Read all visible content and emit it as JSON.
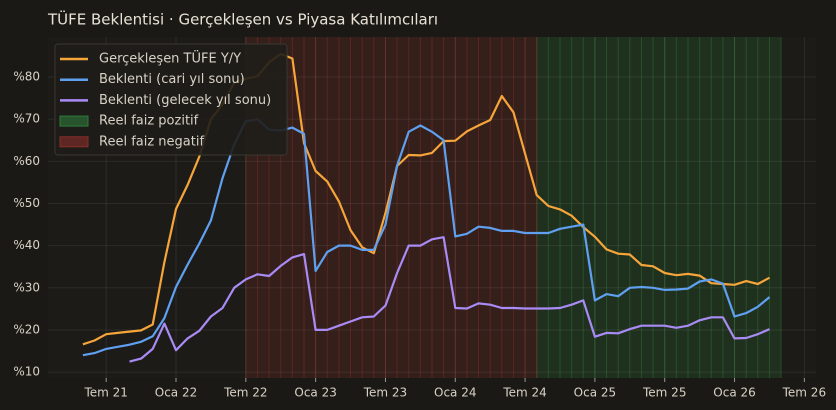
{
  "chart_data": {
    "type": "line",
    "title": "TÜFE Beklentisi · Gerçekleşen vs Piyasa Katılımcıları",
    "x": [
      "2021-05",
      "2021-06",
      "2021-07",
      "2021-08",
      "2021-09",
      "2021-10",
      "2021-11",
      "2021-12",
      "2022-01",
      "2022-02",
      "2022-03",
      "2022-04",
      "2022-05",
      "2022-06",
      "2022-07",
      "2022-08",
      "2022-09",
      "2022-10",
      "2022-11",
      "2022-12",
      "2023-01",
      "2023-02",
      "2023-03",
      "2023-04",
      "2023-05",
      "2023-06",
      "2023-07",
      "2023-08",
      "2023-09",
      "2023-10",
      "2023-11",
      "2023-12",
      "2024-01",
      "2024-02",
      "2024-03",
      "2024-04",
      "2024-05",
      "2024-06",
      "2024-07",
      "2024-08",
      "2024-09",
      "2024-10",
      "2024-11",
      "2024-12",
      "2025-01",
      "2025-02",
      "2025-03",
      "2025-04",
      "2025-05",
      "2025-06",
      "2025-07",
      "2025-08",
      "2025-09",
      "2025-10",
      "2025-11",
      "2025-12",
      "2026-01",
      "2026-02",
      "2026-03",
      "2026-04"
    ],
    "series": [
      {
        "name": "Gerçekleşen TÜFE Y/Y",
        "color": "#f5a53a",
        "values": [
          16.6,
          17.5,
          19.0,
          19.3,
          19.6,
          19.9,
          21.3,
          36.1,
          48.7,
          54.4,
          61.1,
          70.0,
          73.5,
          78.6,
          79.6,
          80.2,
          83.5,
          85.5,
          84.4,
          64.3,
          57.7,
          55.2,
          50.5,
          43.7,
          39.6,
          38.2,
          47.8,
          58.9,
          61.5,
          61.4,
          62.0,
          64.8,
          64.9,
          67.1,
          68.5,
          69.8,
          75.5,
          71.6,
          61.8,
          52.0,
          49.4,
          48.6,
          47.1,
          44.4,
          42.1,
          39.1,
          38.1,
          37.9,
          35.4,
          35.1,
          33.5,
          33.0,
          33.3,
          32.9,
          31.1,
          30.9,
          30.7,
          31.6,
          30.9,
          32.4
        ]
      },
      {
        "name": "Beklenti (cari yıl sonu)",
        "color": "#5fa0f0",
        "values": [
          14.0,
          14.5,
          15.5,
          16.0,
          16.5,
          17.2,
          18.5,
          22.8,
          30.2,
          35.5,
          40.5,
          46.0,
          56.0,
          64.0,
          69.5,
          70.0,
          67.5,
          67.3,
          68.0,
          66.5,
          34.0,
          38.5,
          40.0,
          40.0,
          39.0,
          39.0,
          45.0,
          59.0,
          67.0,
          68.5,
          67.0,
          65.0,
          42.2,
          42.8,
          44.5,
          44.2,
          43.5,
          43.5,
          43.0,
          43.0,
          43.0,
          44.0,
          44.5,
          45.0,
          27.0,
          28.5,
          28.0,
          30.0,
          30.2,
          30.0,
          29.5,
          29.6,
          29.8,
          31.5,
          32.0,
          31.0,
          23.2,
          24.0,
          25.5,
          27.8
        ]
      },
      {
        "name": "Beklenti (gelecek yıl sonu)",
        "color": "#a98bf5",
        "values": [
          null,
          null,
          null,
          null,
          12.5,
          13.2,
          15.5,
          21.5,
          15.2,
          18.0,
          19.8,
          23.2,
          25.2,
          30.0,
          32.0,
          33.2,
          32.8,
          35.2,
          37.2,
          38.0,
          20.0,
          20.0,
          21.0,
          22.0,
          23.0,
          23.2,
          25.8,
          33.5,
          40.0,
          40.0,
          41.5,
          42.0,
          25.2,
          25.1,
          26.3,
          26.0,
          25.2,
          25.2,
          25.1,
          25.1,
          25.1,
          25.2,
          26.0,
          27.0,
          18.4,
          19.3,
          19.2,
          20.2,
          21.0,
          21.0,
          21.0,
          20.5,
          21.0,
          22.3,
          23.0,
          23.0,
          18.0,
          18.1,
          19.0,
          20.2
        ]
      }
    ],
    "regions": [
      {
        "name": "Reel faiz pozitif",
        "start": "2024-08",
        "end": "2026-05",
        "color": "#2e7a3a"
      },
      {
        "name": "Reel faiz negatif",
        "start": "2022-07",
        "end": "2024-08",
        "color": "#8a2e2a"
      }
    ],
    "xlim": [
      "2021-02",
      "2026-08"
    ],
    "xticks": [
      {
        "value": "2021-07",
        "label": "Tem 21"
      },
      {
        "value": "2022-01",
        "label": "Oca 22"
      },
      {
        "value": "2022-07",
        "label": "Tem 22"
      },
      {
        "value": "2023-01",
        "label": "Oca 23"
      },
      {
        "value": "2023-07",
        "label": "Tem 23"
      },
      {
        "value": "2024-01",
        "label": "Oca 24"
      },
      {
        "value": "2024-07",
        "label": "Tem 24"
      },
      {
        "value": "2025-01",
        "label": "Oca 25"
      },
      {
        "value": "2025-07",
        "label": "Tem 25"
      },
      {
        "value": "2026-01",
        "label": "Oca 26"
      },
      {
        "value": "2026-07",
        "label": "Tem 26"
      }
    ],
    "ylim": [
      8.6,
      89.5
    ],
    "yticks": [
      {
        "value": 10,
        "label": "%10"
      },
      {
        "value": 20,
        "label": "%20"
      },
      {
        "value": 30,
        "label": "%30"
      },
      {
        "value": 40,
        "label": "%40"
      },
      {
        "value": 50,
        "label": "%50"
      },
      {
        "value": 60,
        "label": "%60"
      },
      {
        "value": 70,
        "label": "%70"
      },
      {
        "value": 80,
        "label": "%80"
      }
    ],
    "grid": true,
    "legend": "upper-left"
  }
}
